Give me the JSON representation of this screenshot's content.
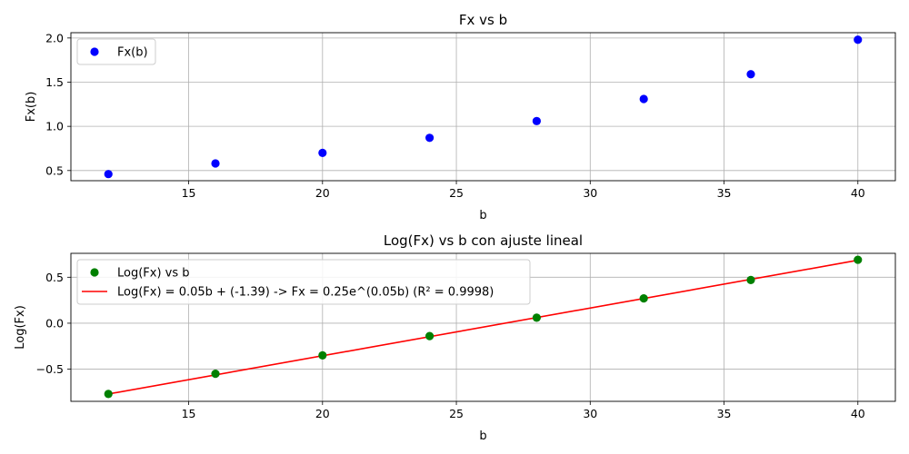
{
  "chart_data": [
    {
      "type": "scatter",
      "title": "Fx vs b",
      "xlabel": "b",
      "ylabel": "Fx(b)",
      "xlim": [
        10.6,
        41.4
      ],
      "ylim": [
        0.385,
        2.06
      ],
      "xticks": [
        15,
        20,
        25,
        30,
        35,
        40
      ],
      "xtick_labels": [
        "15",
        "20",
        "25",
        "30",
        "35",
        "40"
      ],
      "yticks": [
        0.5,
        1.0,
        1.5,
        2.0
      ],
      "ytick_labels": [
        "0.5",
        "1.0",
        "1.5",
        "2.0"
      ],
      "grid": true,
      "legend_position": "top-left",
      "series": [
        {
          "name": "Fx(b)",
          "kind": "scatter",
          "color": "#0000ff",
          "x": [
            12,
            16,
            20,
            24,
            28,
            32,
            36,
            40
          ],
          "y": [
            0.46,
            0.58,
            0.7,
            0.87,
            1.06,
            1.31,
            1.59,
            1.98
          ]
        }
      ]
    },
    {
      "type": "scatter",
      "title": "Log(Fx) vs b con ajuste lineal",
      "xlabel": "b",
      "ylabel": "Log(Fx)",
      "xlim": [
        10.6,
        41.4
      ],
      "ylim": [
        -0.85,
        0.76
      ],
      "xticks": [
        15,
        20,
        25,
        30,
        35,
        40
      ],
      "xtick_labels": [
        "15",
        "20",
        "25",
        "30",
        "35",
        "40"
      ],
      "yticks": [
        -0.5,
        0.0,
        0.5
      ],
      "ytick_labels": [
        "−0.5",
        "0.0",
        "0.5"
      ],
      "grid": true,
      "legend_position": "top-left",
      "series": [
        {
          "name": "Log(Fx) vs b",
          "kind": "scatter",
          "color": "#008000",
          "x": [
            12,
            16,
            20,
            24,
            28,
            32,
            36,
            40
          ],
          "y": [
            -0.77,
            -0.55,
            -0.35,
            -0.14,
            0.06,
            0.27,
            0.47,
            0.69
          ]
        },
        {
          "name": "Log(Fx) = 0.05b + (-1.39) -> Fx = 0.25e^(0.05b)  (R² = 0.9998)",
          "kind": "line",
          "color": "#ff0000",
          "x": [
            12,
            40
          ],
          "y": [
            -0.77,
            0.685
          ]
        }
      ]
    }
  ]
}
